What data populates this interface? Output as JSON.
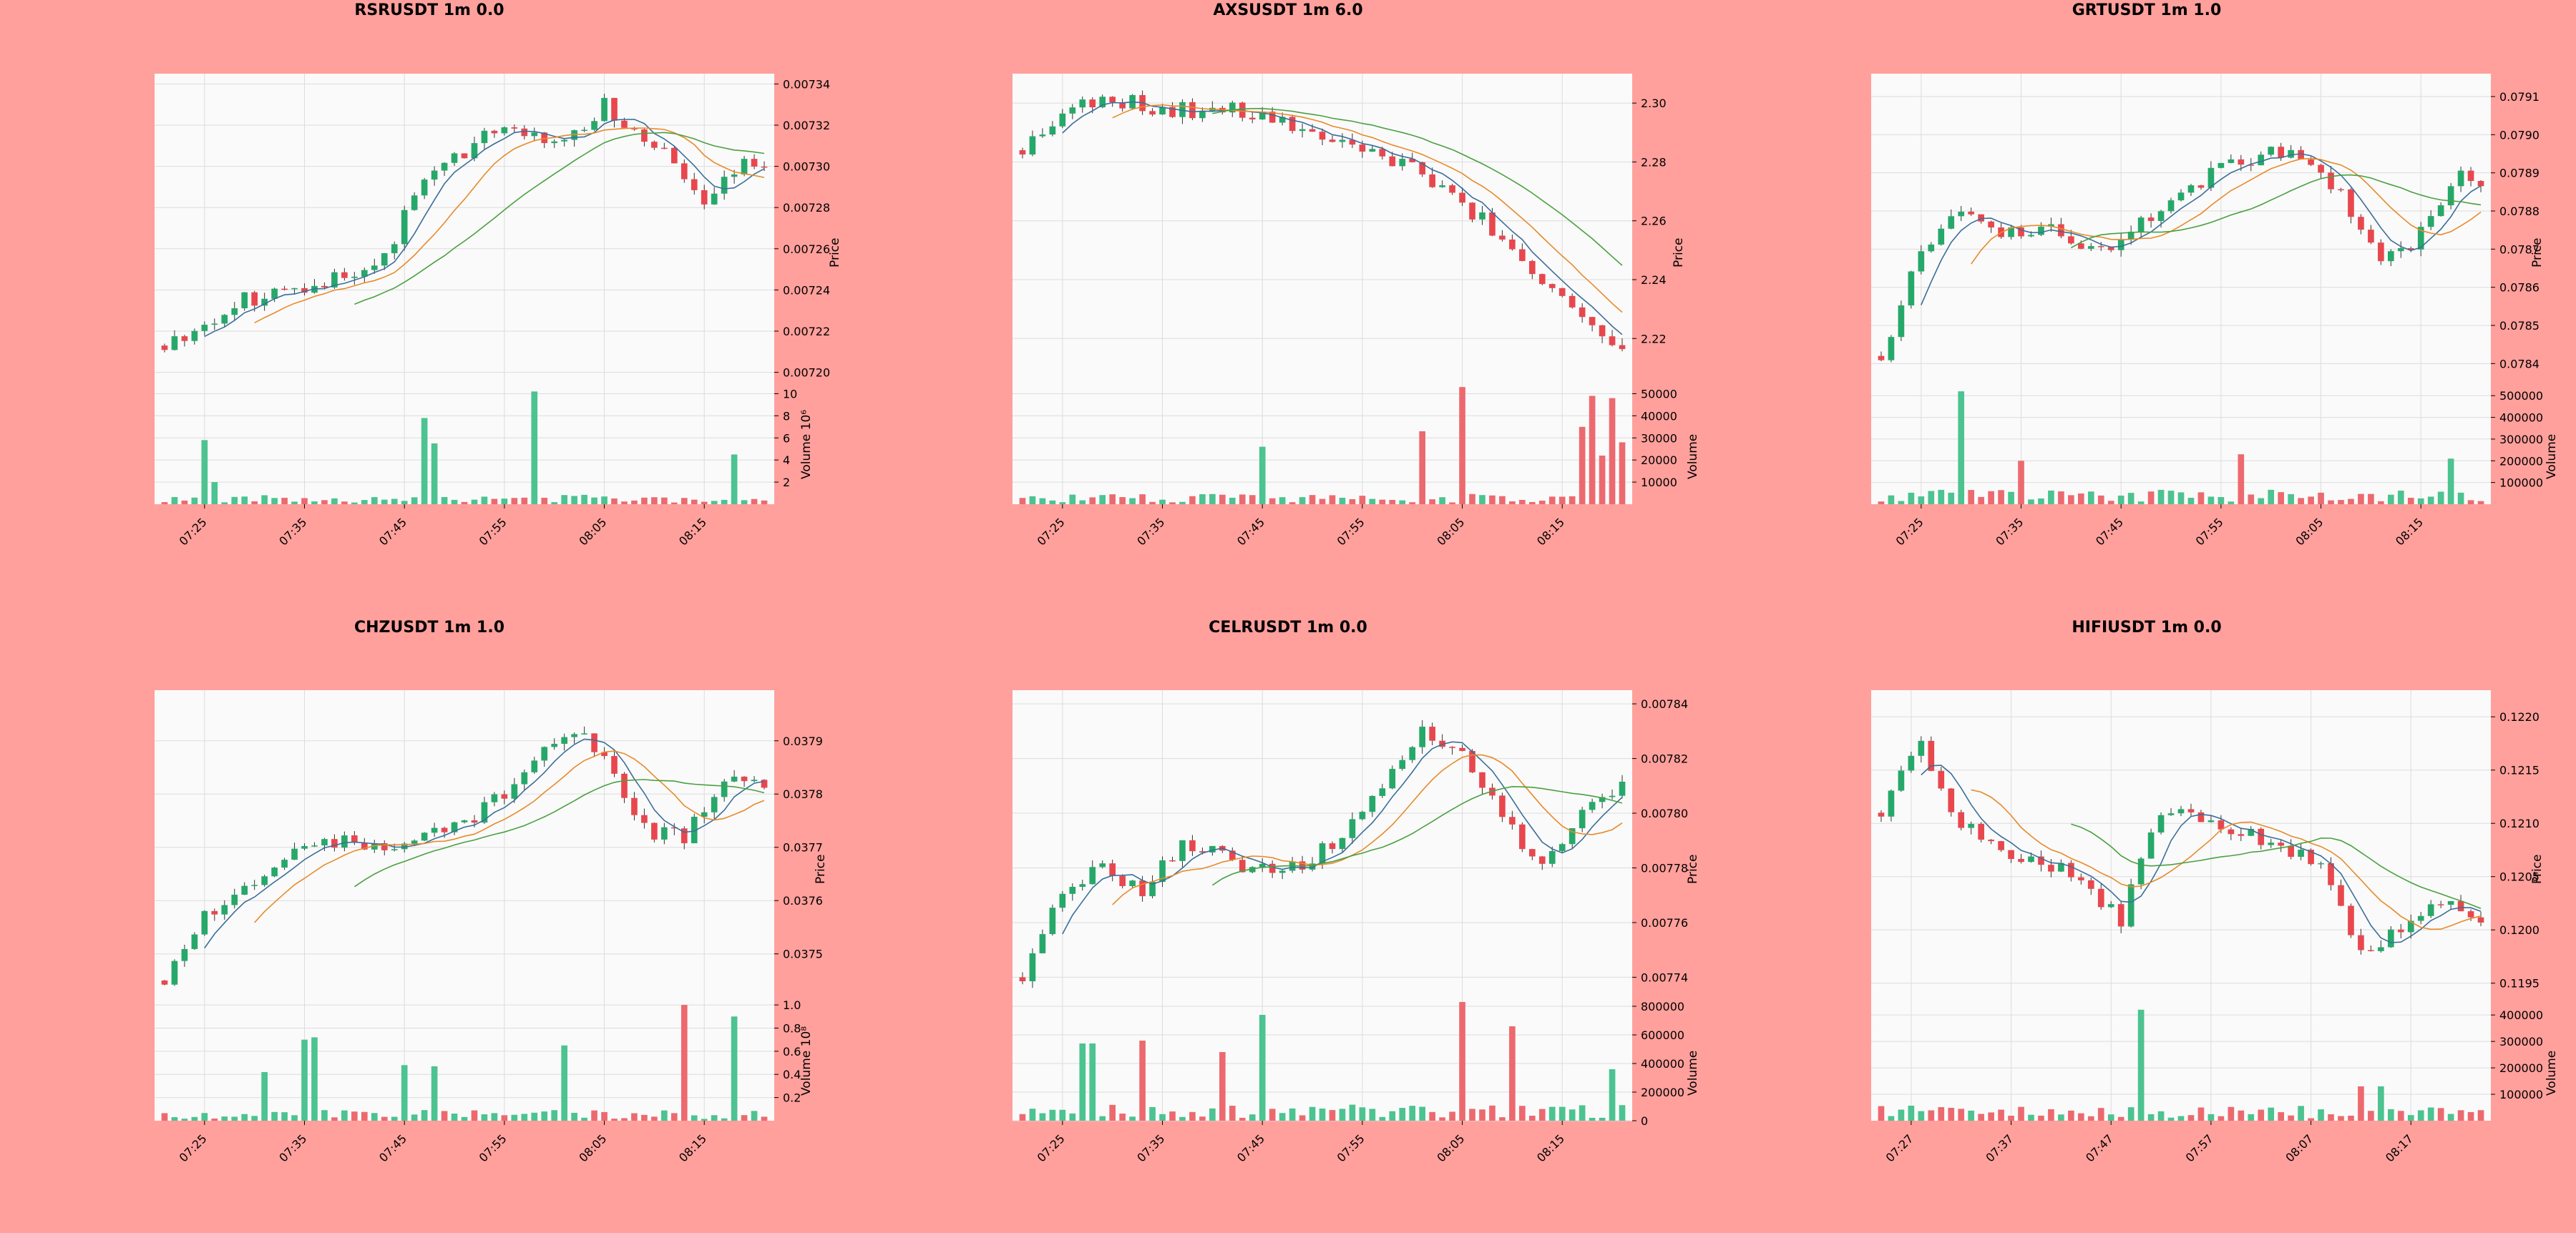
{
  "colors": {
    "background": "#ffa09c",
    "panel": "#fafafa",
    "grid": "#dcdcdc",
    "up": "#26a86a",
    "down": "#e8474e",
    "up_volume": "#4cc390",
    "down_volume": "#ec6a6f",
    "ma_fast": "#3a6f9a",
    "ma_mid": "#e88a2a",
    "ma_slow": "#4aa040"
  },
  "chart_data": [
    {
      "type": "candlestick",
      "title": "RSRUSDT 1m 0.0",
      "ylabel": "Price",
      "vlabel": "Volume  10⁶",
      "ylim": [
        0.007195,
        0.007345
      ],
      "yticks": [
        0.0072,
        0.00722,
        0.00724,
        0.00726,
        0.00728,
        0.0073,
        0.00732,
        0.00734
      ],
      "ytick_labels": [
        "0.00720",
        "0.00722",
        "0.00724",
        "0.00726",
        "0.00728",
        "0.00730",
        "0.00732",
        "0.00734"
      ],
      "vlim": [
        0,
        11
      ],
      "vticks": [
        2,
        4,
        6,
        8,
        10
      ],
      "vtick_labels": [
        "2",
        "4",
        "6",
        "8",
        "10"
      ],
      "xticks": [
        4,
        14,
        24,
        34,
        44,
        54
      ],
      "xtick_labels": [
        "07:25",
        "07:35",
        "07:45",
        "07:55",
        "08:05",
        "08:15"
      ],
      "n": 61,
      "start": 0.007213,
      "seed": 11,
      "drift": [
        [
          0,
          0.007213
        ],
        [
          8,
          0.007235
        ],
        [
          16,
          0.007245
        ],
        [
          22,
          0.007255
        ],
        [
          26,
          0.007295
        ],
        [
          34,
          0.00732
        ],
        [
          40,
          0.00731
        ],
        [
          44,
          0.00733
        ],
        [
          50,
          0.007305
        ],
        [
          54,
          0.00728
        ],
        [
          57,
          0.0073
        ],
        [
          60,
          0.0073
        ]
      ],
      "vol_base": 0.45,
      "vol_spikes": [
        [
          4,
          5.8
        ],
        [
          5,
          2.0
        ],
        [
          26,
          7.8
        ],
        [
          27,
          5.5
        ],
        [
          37,
          10.2
        ],
        [
          57,
          4.5
        ]
      ]
    },
    {
      "type": "candlestick",
      "title": "AXSUSDT 1m 6.0",
      "ylabel": "Price",
      "vlabel": "Volume",
      "ylim": [
        2.205,
        2.31
      ],
      "yticks": [
        2.22,
        2.24,
        2.26,
        2.28,
        2.3
      ],
      "ytick_labels": [
        "2.22",
        "2.24",
        "2.26",
        "2.28",
        "2.30"
      ],
      "vlim": [
        0,
        55000
      ],
      "vticks": [
        10000,
        20000,
        30000,
        40000,
        50000
      ],
      "vtick_labels": [
        "10000",
        "20000",
        "30000",
        "40000",
        "50000"
      ],
      "xticks": [
        4,
        14,
        24,
        34,
        44,
        54
      ],
      "xtick_labels": [
        "07:25",
        "07:35",
        "07:45",
        "07:55",
        "08:05",
        "08:15"
      ],
      "n": 61,
      "start": 2.284,
      "seed": 23,
      "drift": [
        [
          0,
          2.284
        ],
        [
          4,
          2.298
        ],
        [
          8,
          2.302
        ],
        [
          14,
          2.298
        ],
        [
          24,
          2.297
        ],
        [
          30,
          2.288
        ],
        [
          34,
          2.284
        ],
        [
          38,
          2.28
        ],
        [
          42,
          2.27
        ],
        [
          46,
          2.26
        ],
        [
          50,
          2.247
        ],
        [
          54,
          2.235
        ],
        [
          58,
          2.222
        ],
        [
          60,
          2.214
        ]
      ],
      "vol_base": 2500,
      "vol_spikes": [
        [
          24,
          26000
        ],
        [
          40,
          33000
        ],
        [
          44,
          53000
        ],
        [
          56,
          35000
        ],
        [
          57,
          49000
        ],
        [
          58,
          22000
        ],
        [
          59,
          48000
        ],
        [
          60,
          28000
        ]
      ]
    },
    {
      "type": "candlestick",
      "title": "GRTUSDT 1m 1.0",
      "ylabel": "Price",
      "vlabel": "Volume",
      "ylim": [
        0.07835,
        0.07916
      ],
      "yticks": [
        0.0784,
        0.0785,
        0.0786,
        0.0787,
        0.0788,
        0.0789,
        0.079,
        0.0791
      ],
      "ytick_labels": [
        "0.0784",
        "0.0785",
        "0.0786",
        "0.0787",
        "0.0788",
        "0.0789",
        "0.0790",
        "0.0791"
      ],
      "vlim": [
        0,
        560000
      ],
      "vticks": [
        100000,
        200000,
        300000,
        400000,
        500000
      ],
      "vtick_labels": [
        "100000",
        "200000",
        "300000",
        "400000",
        "500000"
      ],
      "xticks": [
        4,
        14,
        24,
        34,
        44,
        54
      ],
      "xtick_labels": [
        "07:25",
        "07:35",
        "07:45",
        "07:55",
        "08:05",
        "08:15"
      ],
      "n": 61,
      "start": 0.07842,
      "seed": 37,
      "drift": [
        [
          0,
          0.07842
        ],
        [
          4,
          0.0787
        ],
        [
          8,
          0.07882
        ],
        [
          12,
          0.07874
        ],
        [
          16,
          0.07876
        ],
        [
          22,
          0.0787
        ],
        [
          28,
          0.0788
        ],
        [
          34,
          0.07892
        ],
        [
          40,
          0.07896
        ],
        [
          46,
          0.07885
        ],
        [
          50,
          0.07866
        ],
        [
          54,
          0.07874
        ],
        [
          58,
          0.07892
        ],
        [
          60,
          0.07886
        ]
      ],
      "vol_base": 35000,
      "vol_spikes": [
        [
          8,
          520000
        ],
        [
          14,
          200000
        ],
        [
          36,
          230000
        ],
        [
          57,
          210000
        ]
      ]
    },
    {
      "type": "candlestick",
      "title": "CHZUSDT 1m 1.0",
      "ylabel": "Price",
      "vlabel": "Volume  10⁸",
      "ylim": [
        0.037415,
        0.037995
      ],
      "yticks": [
        0.0375,
        0.0376,
        0.0377,
        0.0378,
        0.0379
      ],
      "ytick_labels": [
        "0.0375",
        "0.0376",
        "0.0377",
        "0.0378",
        "0.0379"
      ],
      "vlim": [
        0,
        1.05
      ],
      "vticks": [
        0.2,
        0.4,
        0.6,
        0.8,
        1.0
      ],
      "vtick_labels": [
        "0.2",
        "0.4",
        "0.6",
        "0.8",
        "1.0"
      ],
      "xticks": [
        4,
        14,
        24,
        34,
        44,
        54
      ],
      "xtick_labels": [
        "07:25",
        "07:35",
        "07:45",
        "07:55",
        "08:05",
        "08:15"
      ],
      "n": 61,
      "start": 0.03745,
      "seed": 53,
      "drift": [
        [
          0,
          0.03745
        ],
        [
          4,
          0.03757
        ],
        [
          8,
          0.03763
        ],
        [
          12,
          0.03769
        ],
        [
          16,
          0.03771
        ],
        [
          22,
          0.0377
        ],
        [
          30,
          0.03774
        ],
        [
          36,
          0.03784
        ],
        [
          40,
          0.03792
        ],
        [
          44,
          0.03788
        ],
        [
          48,
          0.03773
        ],
        [
          52,
          0.03772
        ],
        [
          56,
          0.03783
        ],
        [
          60,
          0.03781
        ]
      ],
      "vol_base": 0.05,
      "vol_spikes": [
        [
          10,
          0.42
        ],
        [
          14,
          0.7
        ],
        [
          15,
          0.72
        ],
        [
          24,
          0.48
        ],
        [
          27,
          0.47
        ],
        [
          40,
          0.65
        ],
        [
          52,
          1.0
        ],
        [
          57,
          0.9
        ]
      ]
    },
    {
      "type": "candlestick",
      "title": "CELRUSDT 1m 0.0",
      "ylabel": "Price",
      "vlabel": "Volume",
      "ylim": [
        0.007732,
        0.007845
      ],
      "yticks": [
        0.00774,
        0.00776,
        0.00778,
        0.0078,
        0.00782,
        0.00784
      ],
      "ytick_labels": [
        "0.00774",
        "0.00776",
        "0.00778",
        "0.00780",
        "0.00782",
        "0.00784"
      ],
      "vlim": [
        0,
        850000
      ],
      "vticks": [
        0,
        200000,
        400000,
        600000,
        800000
      ],
      "vtick_labels": [
        "0",
        "200000",
        "400000",
        "600000",
        "800000"
      ],
      "xticks": [
        4,
        14,
        24,
        34,
        44,
        54
      ],
      "xtick_labels": [
        "07:25",
        "07:35",
        "07:45",
        "07:55",
        "08:05",
        "08:15"
      ],
      "n": 61,
      "start": 0.00774,
      "seed": 71,
      "drift": [
        [
          0,
          0.00774
        ],
        [
          4,
          0.00777
        ],
        [
          8,
          0.00778
        ],
        [
          12,
          0.00777
        ],
        [
          16,
          0.00779
        ],
        [
          22,
          0.00778
        ],
        [
          28,
          0.00778
        ],
        [
          34,
          0.0078
        ],
        [
          40,
          0.00783
        ],
        [
          44,
          0.00782
        ],
        [
          48,
          0.0078
        ],
        [
          52,
          0.00778
        ],
        [
          56,
          0.0078
        ],
        [
          60,
          0.00781
        ]
      ],
      "vol_base": 60000,
      "vol_spikes": [
        [
          6,
          540000
        ],
        [
          7,
          540000
        ],
        [
          12,
          560000
        ],
        [
          20,
          480000
        ],
        [
          24,
          740000
        ],
        [
          44,
          830000
        ],
        [
          49,
          660000
        ],
        [
          59,
          360000
        ]
      ]
    },
    {
      "type": "candlestick",
      "title": "HIFIUSDT 1m 0.0",
      "ylabel": "Price",
      "vlabel": "Volume",
      "ylim": [
        0.11935,
        0.12225
      ],
      "yticks": [
        0.1195,
        0.12,
        0.1205,
        0.121,
        0.1215,
        0.122
      ],
      "ytick_labels": [
        "0.1195",
        "0.1200",
        "0.1205",
        "0.1210",
        "0.1215",
        "0.1220"
      ],
      "vlim": [
        0,
        460000
      ],
      "vticks": [
        100000,
        200000,
        300000,
        400000
      ],
      "vtick_labels": [
        "100000",
        "200000",
        "300000",
        "400000"
      ],
      "xticks": [
        3,
        13,
        23,
        33,
        43,
        53
      ],
      "xtick_labels": [
        "07:27",
        "07:37",
        "07:47",
        "07:57",
        "08:07",
        "08:17"
      ],
      "n": 61,
      "start": 0.1211,
      "seed": 89,
      "drift": [
        [
          0,
          0.1211
        ],
        [
          4,
          0.1218
        ],
        [
          7,
          0.1211
        ],
        [
          12,
          0.1207
        ],
        [
          18,
          0.1206
        ],
        [
          24,
          0.1201
        ],
        [
          28,
          0.1211
        ],
        [
          34,
          0.121
        ],
        [
          40,
          0.1208
        ],
        [
          44,
          0.1206
        ],
        [
          48,
          0.1198
        ],
        [
          52,
          0.12
        ],
        [
          56,
          0.1203
        ],
        [
          60,
          0.12
        ]
      ],
      "vol_base": 30000,
      "vol_spikes": [
        [
          26,
          420000
        ],
        [
          48,
          130000
        ],
        [
          50,
          130000
        ]
      ]
    }
  ]
}
